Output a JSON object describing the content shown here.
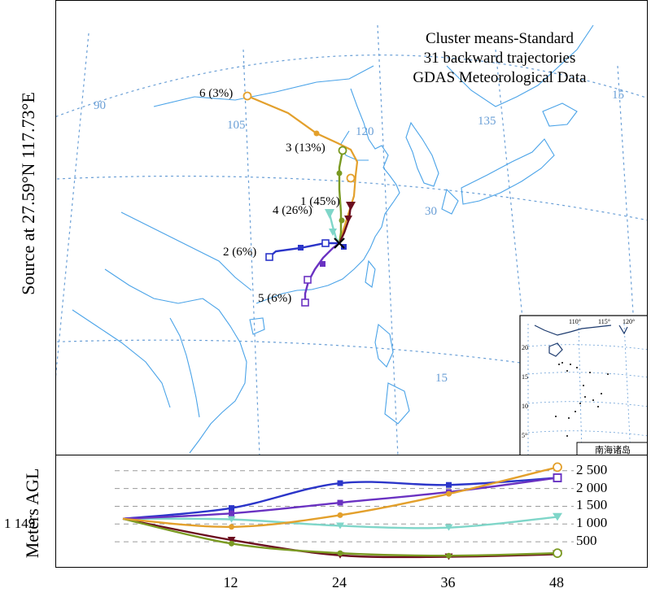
{
  "title_lines": [
    "Cluster means-Standard",
    "31 backward trajectories",
    "GDAS Meteorological Data"
  ],
  "source_label": "Source at 27.59°N 117.73°E",
  "height_axis_label": "Meters AGL",
  "start_height_label": "1 149",
  "height_tick_labels": [
    "2 500",
    "2 000",
    "1 500",
    "1 000",
    "500"
  ],
  "x_tick_labels": [
    "12",
    "24",
    "36",
    "48"
  ],
  "grid_labels": {
    "lon_90": "90",
    "lon_105": "105",
    "lon_120": "120",
    "lon_135": "135",
    "lat_30": "30",
    "lat_15": "15",
    "edge_15": "15"
  },
  "inset": {
    "lon_labels": [
      "110°",
      "115°",
      "120°"
    ],
    "lat_labels": [
      "20",
      "15",
      "10",
      "5°"
    ],
    "caption": "南海诸岛"
  },
  "colors": {
    "cluster1": "#6b0d1e",
    "cluster2": "#2b35c9",
    "cluster3": "#7a9a22",
    "cluster4": "#7fd6c9",
    "cluster5": "#6a32c2",
    "cluster6": "#e3a02c",
    "grid": "#6a9fd6",
    "coast": "#4aa3e8"
  },
  "trajectories": [
    {
      "id": "cluster-1",
      "label": "1 (45%)",
      "color": "#6b0d1e",
      "marker": "triangle-down"
    },
    {
      "id": "cluster-2",
      "label": "2 (6%)",
      "color": "#2b35c9",
      "marker": "square-filled"
    },
    {
      "id": "cluster-3",
      "label": "3 (13%)",
      "color": "#7a9a22",
      "marker": "circle-filled"
    },
    {
      "id": "cluster-4",
      "label": "4 (26%)",
      "color": "#7fd6c9",
      "marker": "triangle-down"
    },
    {
      "id": "cluster-5",
      "label": "5 (6%)",
      "color": "#6a32c2",
      "marker": "square-filled"
    },
    {
      "id": "cluster-6",
      "label": "6 (3%)",
      "color": "#e3a02c",
      "marker": "circle-filled"
    }
  ],
  "chart_data": {
    "type": "line",
    "xlabel": "",
    "ylabel": "Meters AGL",
    "x": [
      0,
      12,
      24,
      36,
      48
    ],
    "ylim": [
      0,
      2700
    ],
    "x_ticks": [
      12,
      24,
      36,
      48
    ],
    "y_ticks": [
      500,
      1000,
      1500,
      2000,
      2500
    ],
    "grid": "horizontal dashed",
    "series": [
      {
        "name": "1 (45%)",
        "values": [
          1149,
          550,
          120,
          80,
          150
        ]
      },
      {
        "name": "2 (6%)",
        "values": [
          1149,
          1450,
          2150,
          2100,
          2300
        ]
      },
      {
        "name": "3 (13%)",
        "values": [
          1149,
          450,
          180,
          110,
          180
        ]
      },
      {
        "name": "4 (26%)",
        "values": [
          1149,
          1130,
          950,
          900,
          1200
        ]
      },
      {
        "name": "5 (6%)",
        "values": [
          1149,
          1300,
          1600,
          1900,
          2300
        ]
      },
      {
        "name": "6 (3%)",
        "values": [
          1149,
          920,
          1250,
          1850,
          2600
        ]
      }
    ]
  }
}
